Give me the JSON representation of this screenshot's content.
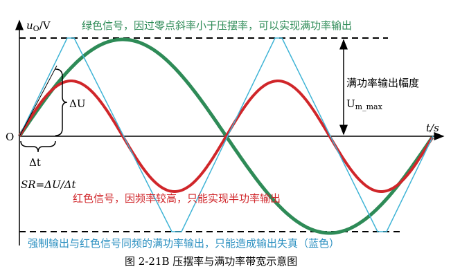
{
  "axes": {
    "y_symbol": "u",
    "y_subscript": "O",
    "y_unit": "/V",
    "x_label": "t/s",
    "origin": "O"
  },
  "annotations": {
    "green": "绿色信号，因过零点斜率小于压摆率，可以实现满功率输出",
    "delta_u": "ΔU",
    "delta_t": "Δt",
    "slew_rate": "SR=ΔU/Δt",
    "amplitude": "满功率输出幅度",
    "amplitude_symbol": "U",
    "amplitude_subscript": "m_max",
    "red": "红色信号，因频率较高，只能实现半功率输出",
    "blue": "强制输出与红色信号同频的满功率输出，只能造成输出失真（蓝色）"
  },
  "caption": "图 2-21B  压摆率与满功率带宽示意图"
}
